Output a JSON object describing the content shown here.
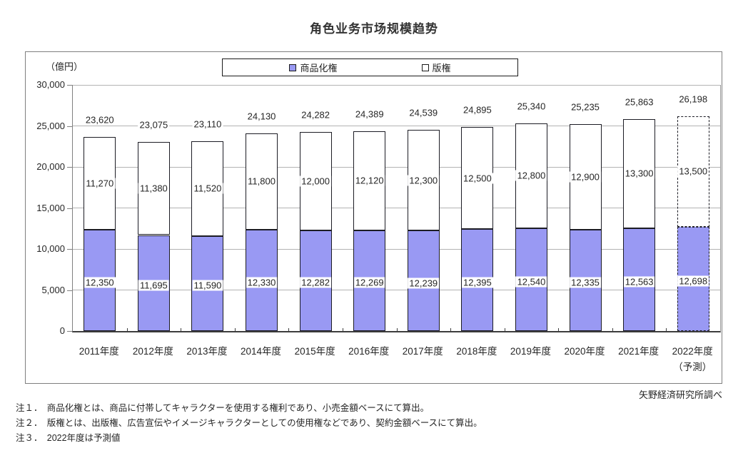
{
  "chart_data": {
    "type": "bar",
    "stacked": true,
    "title": "角色业务市场规模趋势",
    "unit_label": "（億円）",
    "categories": [
      "2011年度",
      "2012年度",
      "2013年度",
      "2014年度",
      "2015年度",
      "2016年度",
      "2017年度",
      "2018年度",
      "2019年度",
      "2020年度",
      "2021年度",
      "2022年度"
    ],
    "forecast_index": 11,
    "forecast_category_note": "（予測）",
    "series": [
      {
        "name": "商品化権",
        "color": "#9999f3",
        "border_color": "#1c1c24",
        "values": [
          12350,
          11695,
          11590,
          12330,
          12282,
          12269,
          12239,
          12395,
          12540,
          12335,
          12563,
          12698
        ]
      },
      {
        "name": "版権",
        "color": "#ffffff",
        "border_color": "#1c1c24",
        "values": [
          11270,
          11380,
          11520,
          11800,
          12000,
          12120,
          12300,
          12500,
          12800,
          12900,
          13300,
          13500
        ]
      }
    ],
    "totals": [
      23620,
      23075,
      23110,
      24130,
      24282,
      24389,
      24539,
      24895,
      25340,
      25235,
      25863,
      26198
    ],
    "ylim": [
      0,
      30000
    ],
    "ytick_step": 5000,
    "grid": true,
    "legend_position": "top"
  },
  "source": "矢野経済研究所調べ",
  "notes": [
    "注１．　商品化権とは、商品に付帯してキャラクターを使用する権利であり、小売金額ベースにて算出。",
    "注２．　版権とは、出版権、広告宣伝やイメージキャラクターとしての使用権などであり、契約金額ベースにて算出。",
    "注３．　2022年度は予測値"
  ]
}
